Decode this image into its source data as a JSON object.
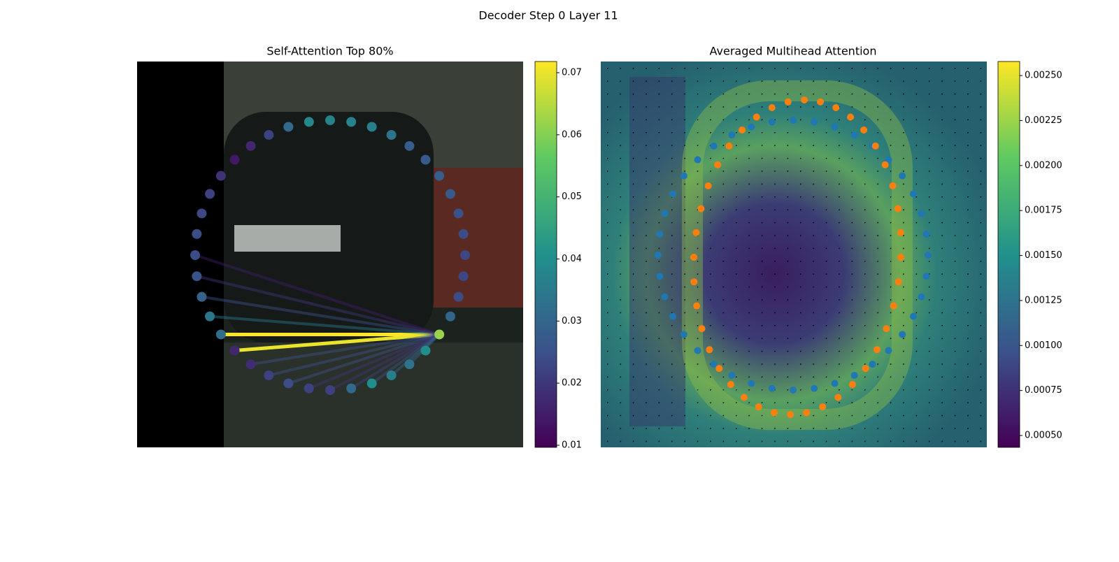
{
  "title": "Decoder Step 0 Layer 11",
  "chart_data": [
    {
      "type": "attention",
      "title": "Self-Attention Top 80%",
      "values": [
        0.038,
        0.037,
        0.037,
        0.036,
        0.033,
        0.028,
        0.027,
        0.028,
        0.027,
        0.025,
        0.024,
        0.023,
        0.023,
        0.024,
        0.03,
        0.062,
        0.04,
        0.033,
        0.036,
        0.04,
        0.031,
        0.022,
        0.022,
        0.024,
        0.022,
        0.018,
        0.017,
        0.032,
        0.034,
        0.029,
        0.025,
        0.024,
        0.024,
        0.023,
        0.022,
        0.019,
        0.014,
        0.017,
        0.022,
        0.031
      ],
      "query": 15,
      "links": [
        {
          "target": 27,
          "value": 0.072
        },
        {
          "target": 26,
          "value": 0.07
        },
        {
          "target": 28,
          "value": 0.035
        },
        {
          "target": 29,
          "value": 0.025
        },
        {
          "target": 30,
          "value": 0.02
        },
        {
          "target": 25,
          "value": 0.025
        },
        {
          "target": 24,
          "value": 0.025
        },
        {
          "target": 23,
          "value": 0.025
        },
        {
          "target": 22,
          "value": 0.02
        },
        {
          "target": 21,
          "value": 0.02
        },
        {
          "target": 20,
          "value": 0.022
        },
        {
          "target": 19,
          "value": 0.025
        },
        {
          "target": 18,
          "value": 0.03
        },
        {
          "target": 17,
          "value": 0.03
        },
        {
          "target": 31,
          "value": 0.015
        }
      ],
      "clim": [
        0.00966,
        0.0718
      ],
      "cticks": [
        0.01,
        0.02,
        0.03,
        0.04,
        0.05,
        0.06,
        0.07
      ]
    },
    {
      "type": "heatmap",
      "title": "Averaged Multihead Attention",
      "clim": [
        0.000434,
        0.002578
      ],
      "cticks": [
        {
          "value": 0.0005,
          "label": "0.00050"
        },
        {
          "value": 0.00075,
          "label": "0.00075"
        },
        {
          "value": 0.001,
          "label": "0.00100"
        },
        {
          "value": 0.00125,
          "label": "0.00125"
        },
        {
          "value": 0.0015,
          "label": "0.00150"
        },
        {
          "value": 0.00175,
          "label": "0.00175"
        },
        {
          "value": 0.002,
          "label": "0.00200"
        },
        {
          "value": 0.00225,
          "label": "0.00225"
        },
        {
          "value": 0.0025,
          "label": "0.00250"
        }
      ]
    }
  ]
}
